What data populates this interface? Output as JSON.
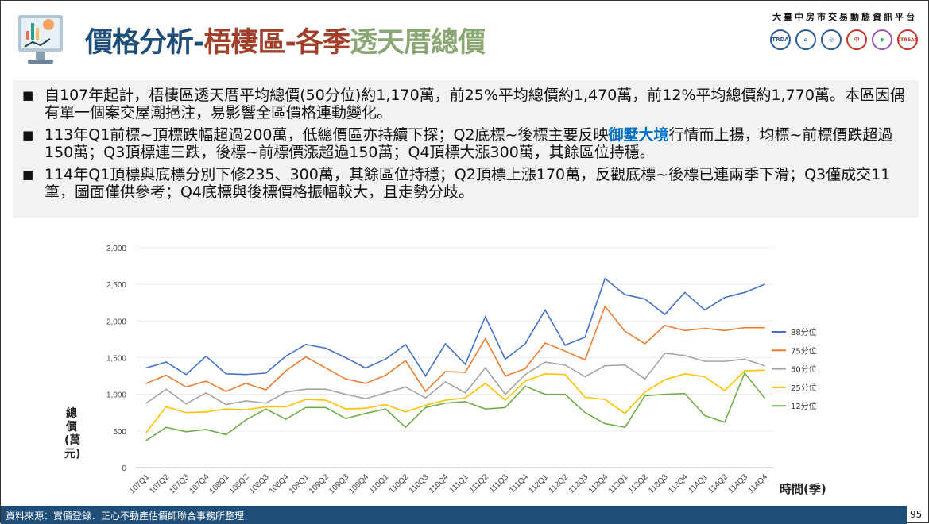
{
  "header": {
    "title_part1": "價格分析-",
    "title_part2": "梧棲區-各季",
    "title_part3": "透天厝總價",
    "platform": "大臺中房市交易動態資訊平台",
    "logos": [
      "TRDA",
      "CTREAA"
    ]
  },
  "bullets": [
    {
      "text": "自107年起計，梧棲區透天厝平均總價(50分位)約1,170萬，前25%平均總價約1,470萬，前12%平均總價約1,770萬。本區因偶有單一個案交屋潮挹注，易影響全區價格連動變化。"
    },
    {
      "before": "113年Q1前標~頂標跌幅超過200萬，低總價區亦持續下探；Q2底標~後標主要反映",
      "highlight": "御墅大境",
      "after": "行情而上揚，均標~前標價跌超過150萬；Q3頂標連三跌，後標~前標價漲超過150萬；Q4頂標大漲300萬，其餘區位持穩。"
    },
    {
      "text": "114年Q1頂標與底標分別下修235、300萬，其餘區位持穩；Q2頂標上漲170萬，反觀底標~後標已連兩季下滑；Q3僅成交11筆，圖面僅供參考；Q4底標與後標價格振幅較大，且走勢分歧。"
    }
  ],
  "chart_data": {
    "type": "line",
    "ylabel": "總價(萬元)",
    "xlabel": "時間(季)",
    "ylim": [
      0,
      3000
    ],
    "yticks": [
      "0",
      "500",
      "1,000",
      "1,500",
      "2,000",
      "2,500",
      "3,000"
    ],
    "ytick_values": [
      0,
      500,
      1000,
      1500,
      2000,
      2500,
      3000
    ],
    "grid": true,
    "legend_placement": "right",
    "categories": [
      "107Q1",
      "107Q2",
      "107Q3",
      "107Q4",
      "108Q1",
      "108Q2",
      "108Q3",
      "108Q4",
      "109Q1",
      "109Q2",
      "109Q3",
      "109Q4",
      "110Q1",
      "110Q2",
      "110Q3",
      "110Q4",
      "111Q1",
      "111Q2",
      "111Q3",
      "111Q4",
      "112Q1",
      "112Q2",
      "112Q3",
      "112Q4",
      "113Q1",
      "113Q2",
      "113Q3",
      "113Q4",
      "114Q1",
      "114Q2",
      "114Q3",
      "114Q4"
    ],
    "series": [
      {
        "name": "88分位",
        "color": "#4472c4",
        "values": [
          1360,
          1440,
          1270,
          1520,
          1280,
          1270,
          1290,
          1520,
          1680,
          1630,
          1500,
          1360,
          1480,
          1680,
          1250,
          1690,
          1410,
          2060,
          1480,
          1690,
          2150,
          1670,
          1780,
          2580,
          2360,
          2300,
          2090,
          2390,
          2150,
          2320,
          2390,
          2500
        ]
      },
      {
        "name": "75分位",
        "color": "#ed7d31",
        "values": [
          1150,
          1260,
          1100,
          1180,
          1040,
          1150,
          1060,
          1320,
          1510,
          1360,
          1210,
          1150,
          1260,
          1460,
          1040,
          1310,
          1300,
          1760,
          1250,
          1350,
          1700,
          1590,
          1470,
          2200,
          1860,
          1690,
          1940,
          1870,
          1900,
          1870,
          1910,
          1910
        ]
      },
      {
        "name": "50分位",
        "color": "#a5a5a5",
        "values": [
          880,
          1070,
          870,
          1020,
          860,
          910,
          880,
          1030,
          1070,
          1070,
          1000,
          940,
          1020,
          1100,
          950,
          1170,
          1020,
          1360,
          1000,
          1270,
          1440,
          1400,
          1240,
          1390,
          1400,
          1210,
          1560,
          1530,
          1450,
          1450,
          1480,
          1390
        ]
      },
      {
        "name": "25分位",
        "color": "#ffc000",
        "values": [
          480,
          830,
          750,
          760,
          800,
          790,
          830,
          830,
          930,
          920,
          800,
          810,
          860,
          760,
          850,
          920,
          950,
          1150,
          920,
          1180,
          1280,
          1270,
          960,
          930,
          740,
          1030,
          1200,
          1280,
          1240,
          1050,
          1320,
          1330
        ]
      },
      {
        "name": "12分位",
        "color": "#70ad47",
        "values": [
          370,
          550,
          490,
          520,
          450,
          650,
          800,
          660,
          820,
          820,
          670,
          740,
          800,
          550,
          820,
          880,
          900,
          800,
          820,
          1110,
          1000,
          1000,
          750,
          600,
          550,
          980,
          1000,
          1010,
          710,
          620,
          1290,
          950
        ]
      }
    ]
  },
  "footer": {
    "source": "資料來源：實價登錄．正心不動產估價師聯合事務所整理",
    "page": "95"
  }
}
